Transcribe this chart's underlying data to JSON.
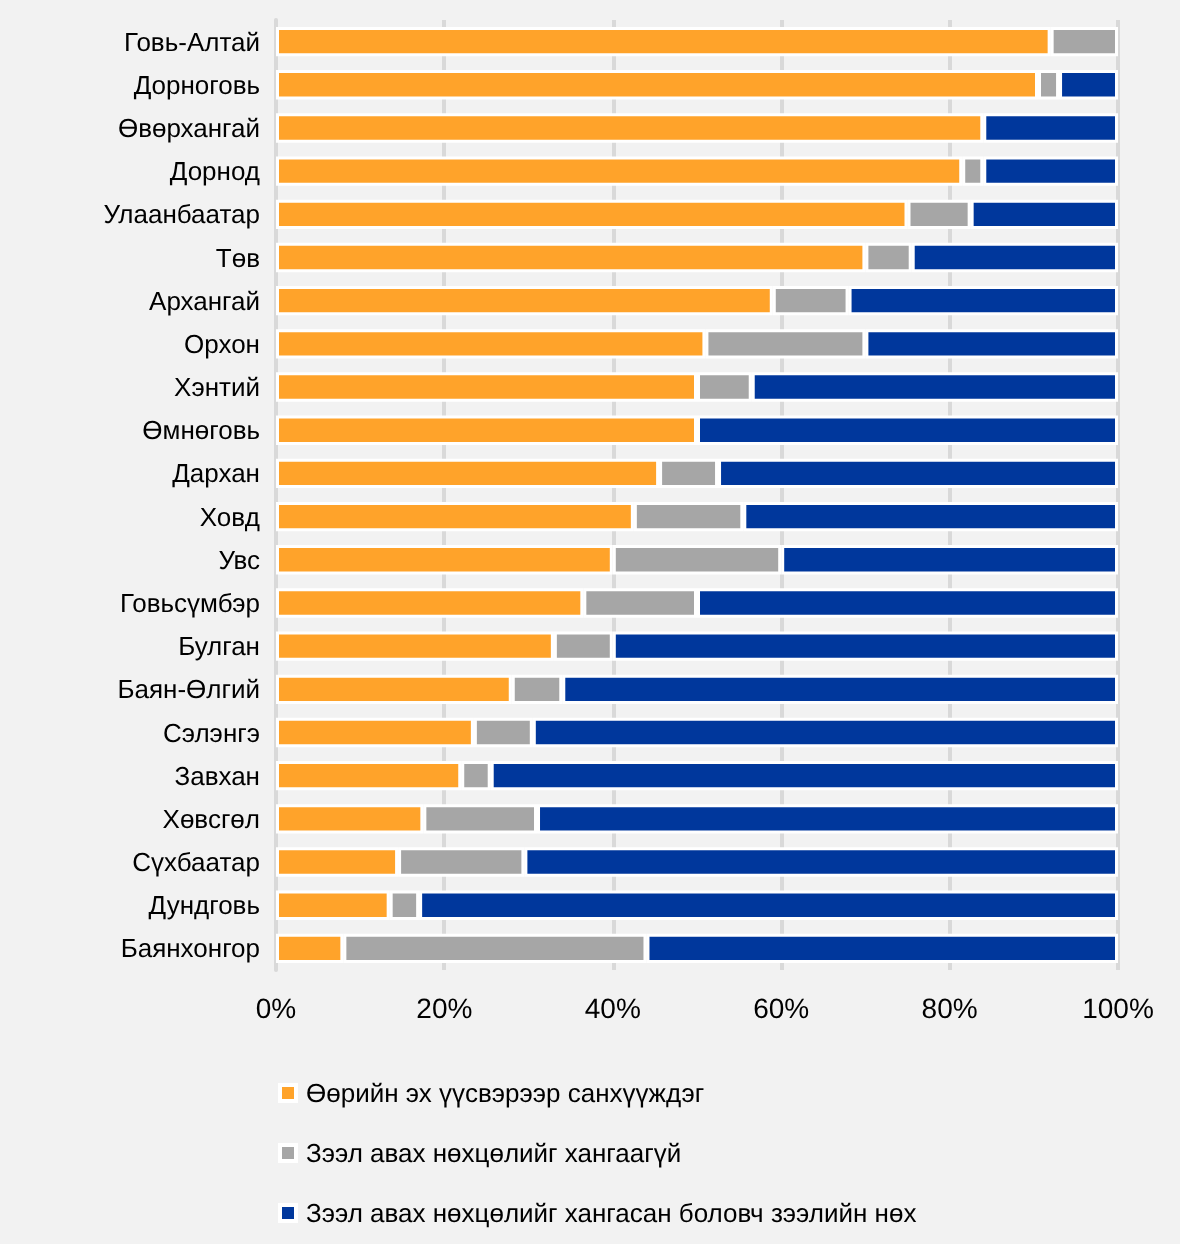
{
  "chart_data": {
    "type": "bar",
    "orientation": "horizontal",
    "stacked": true,
    "categories": [
      "Говь-Алтай",
      "Дорноговь",
      "Өвөрхангай",
      "Дорнод",
      "Улаанбаатар",
      "Төв",
      "Архангай",
      "Орхон",
      "Хэнтий",
      "Өмнөговь",
      "Дархан",
      "Ховд",
      "Увс",
      "Говьсүмбэр",
      "Булган",
      "Баян-Өлгий",
      "Сэлэнгэ",
      "Завхан",
      "Хөвсгөл",
      "Сүхбаатар",
      "Дундговь",
      "Баянхонгор"
    ],
    "series": [
      {
        "name": "Өөрийн эх үүсвэрээр санхүүждэг",
        "color": "#ffa32a",
        "values": [
          92,
          90.5,
          84,
          81.5,
          75,
          70,
          59,
          51,
          50,
          50,
          45.5,
          42.5,
          40,
          36.5,
          33,
          28,
          23.5,
          22,
          17.5,
          14.5,
          13.5,
          8
        ]
      },
      {
        "name": "Зээл авах нөхцөлийг хангаагүй",
        "color": "#a6a6a6",
        "values": [
          8,
          2.5,
          0,
          2.5,
          7.5,
          5.5,
          9,
          19,
          6.5,
          0,
          7,
          13,
          20,
          13.5,
          7,
          6,
          7,
          3.5,
          13.5,
          15,
          3.5,
          36
        ]
      },
      {
        "name": "Зээл авах нөхцөлийг хангасан боловч зээлийн нөх",
        "color": "#00379c",
        "values": [
          0,
          7,
          16,
          16,
          17.5,
          24.5,
          32,
          30,
          43.5,
          50,
          47.5,
          44.5,
          40,
          50,
          60,
          66,
          69.5,
          74.5,
          69,
          70.5,
          83,
          56
        ]
      }
    ],
    "xlim": [
      0,
      100
    ],
    "xticks": [
      {
        "value": 0,
        "label": "0%"
      },
      {
        "value": 20,
        "label": "20%"
      },
      {
        "value": 40,
        "label": "40%"
      },
      {
        "value": 60,
        "label": "60%"
      },
      {
        "value": 80,
        "label": "80%"
      },
      {
        "value": 100,
        "label": "100%"
      }
    ],
    "grid": "x",
    "legend": "bottom"
  }
}
